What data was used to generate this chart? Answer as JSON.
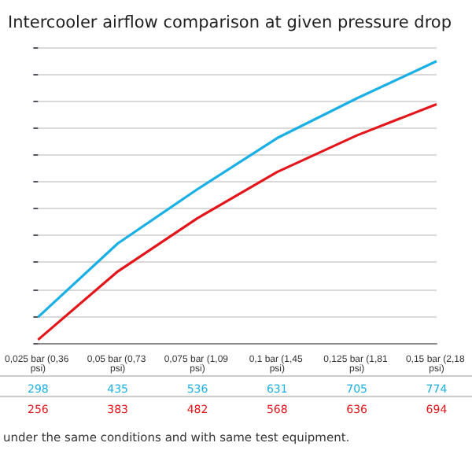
{
  "chart_data": {
    "type": "line",
    "title": "Intercooler airflow comparison at given pressure drop",
    "categories": [
      "0,025 bar (0,36 psi)",
      "0,05 bar (0,73 psi)",
      "0,075 bar (1,09 psi)",
      "0,1 bar (1,45 psi)",
      "0,125 bar (1,81 psi)",
      "0,15 bar (2,18 psi)"
    ],
    "series": [
      {
        "color": "#1ab0e6",
        "values": [
          298,
          435,
          536,
          631,
          705,
          774
        ]
      },
      {
        "color": "#e3161b",
        "values": [
          256,
          383,
          482,
          568,
          636,
          694
        ]
      }
    ],
    "ylim": [
      250,
      800
    ],
    "yticks": [
      {
        "value": 250,
        "label": null
      },
      {
        "value": 300,
        "label": null
      },
      {
        "value": 350,
        "label": null
      },
      {
        "value": 400,
        "label": null
      },
      {
        "value": 450,
        "label": null
      },
      {
        "value": 500,
        "label": null
      },
      {
        "value": 550,
        "label": null
      },
      {
        "value": 600,
        "label": null
      },
      {
        "value": 650,
        "label": null
      },
      {
        "value": 700,
        "label": null
      },
      {
        "value": 750,
        "label": null
      },
      {
        "value": 800,
        "label": null
      }
    ],
    "grid": "y",
    "marker": "none",
    "data_labels": true,
    "annotations": [
      "under the same conditions and with same test equipment."
    ]
  }
}
